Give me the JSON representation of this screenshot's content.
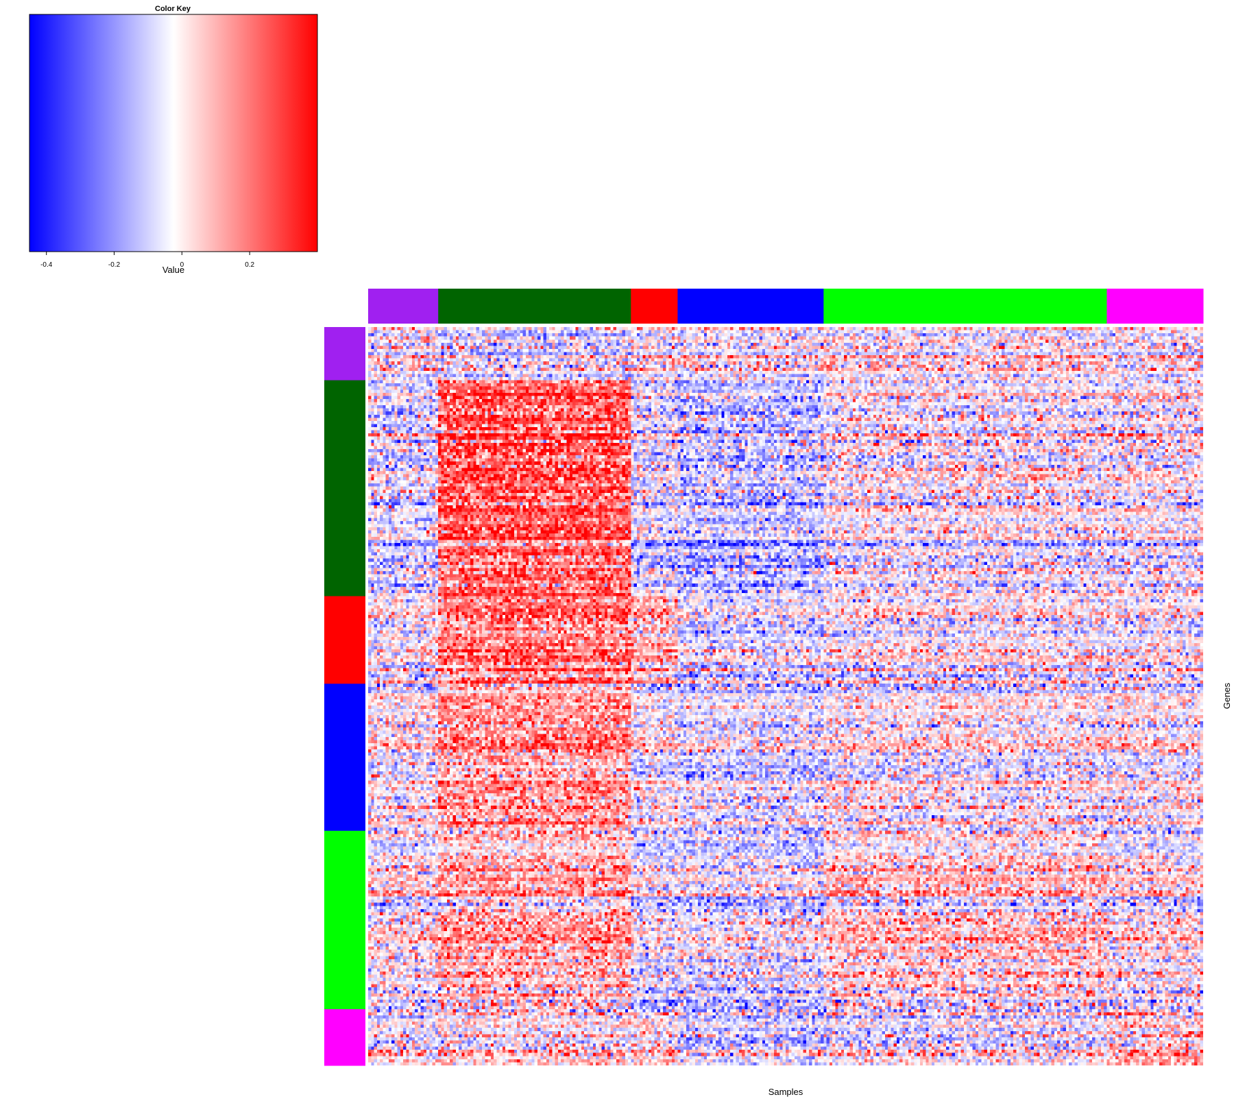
{
  "chart_data": {
    "type": "heatmap",
    "color_key": {
      "title": "Color Key",
      "xlabel": "Value",
      "range": [
        -0.45,
        0.4
      ],
      "ticks": [
        -0.4,
        -0.2,
        0,
        0.2
      ],
      "tick_labels": [
        "-0.4",
        "-0.2",
        "0",
        "0.2"
      ],
      "low_color": "#0000ff",
      "mid_color": "#ffffff",
      "high_color": "#ff0000"
    },
    "xlabel": "Samples",
    "ylabel": "Genes",
    "n_columns": 286,
    "n_rows": 236,
    "column_groups": [
      {
        "color": "#a020f0",
        "count": 24
      },
      {
        "color": "#006400",
        "count": 66
      },
      {
        "color": "#ff0000",
        "count": 16
      },
      {
        "color": "#0000ff",
        "count": 50
      },
      {
        "color": "#00ff00",
        "count": 97
      },
      {
        "color": "#ff00ff",
        "count": 33
      }
    ],
    "row_groups": [
      {
        "color": "#a020f0",
        "count": 17
      },
      {
        "color": "#006400",
        "count": 69
      },
      {
        "color": "#ff0000",
        "count": 28
      },
      {
        "color": "#0000ff",
        "count": 47
      },
      {
        "color": "#00ff00",
        "count": 57
      },
      {
        "color": "#ff00ff",
        "count": 18
      }
    ],
    "value_range": [
      -0.45,
      0.4
    ]
  }
}
